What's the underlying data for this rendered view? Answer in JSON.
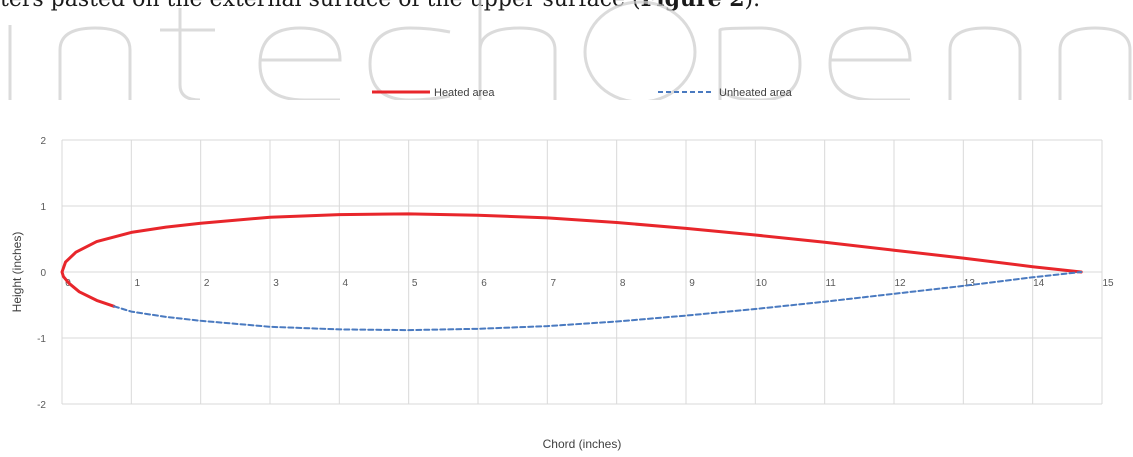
{
  "caption": {
    "text_before": "ters pasted on the external surface of the upper surface (",
    "figure_ref": "Figure 2",
    "text_after": ")."
  },
  "watermark": {
    "text": "IntechOpen"
  },
  "colors": {
    "heated": "#e8262b",
    "unheated": "#4a7ac0",
    "grid": "#d9d9d9",
    "axis_text": "#595959"
  },
  "chart_data": {
    "type": "line",
    "title": "",
    "xlabel": "Chord (inches)",
    "ylabel": "Height (inches)",
    "xlim": [
      0,
      15
    ],
    "ylim": [
      -2,
      2
    ],
    "x_ticks": [
      0,
      1,
      2,
      3,
      4,
      5,
      6,
      7,
      8,
      9,
      10,
      11,
      12,
      13,
      14,
      15
    ],
    "y_ticks": [
      -2,
      -1,
      0,
      1,
      2
    ],
    "grid": true,
    "legend_position": "top",
    "series": [
      {
        "name": "Heated area",
        "style": "solid",
        "x": [
          0.75,
          0.5,
          0.25,
          0.1,
          0.02,
          0,
          0.05,
          0.2,
          0.5,
          1,
          1.5,
          2,
          3,
          4,
          5,
          6,
          7,
          8,
          9,
          10,
          11,
          12,
          13,
          14,
          14.7
        ],
        "y": [
          -0.52,
          -0.43,
          -0.3,
          -0.17,
          -0.07,
          0,
          0.15,
          0.3,
          0.46,
          0.6,
          0.68,
          0.74,
          0.83,
          0.87,
          0.88,
          0.86,
          0.82,
          0.75,
          0.66,
          0.56,
          0.45,
          0.33,
          0.21,
          0.08,
          0.0
        ]
      },
      {
        "name": "Unheated area",
        "style": "dashed",
        "x": [
          0.75,
          1,
          1.5,
          2,
          3,
          4,
          5,
          6,
          7,
          8,
          9,
          10,
          11,
          12,
          13,
          14,
          14.7
        ],
        "y": [
          -0.52,
          -0.6,
          -0.68,
          -0.74,
          -0.83,
          -0.87,
          -0.88,
          -0.86,
          -0.82,
          -0.75,
          -0.66,
          -0.56,
          -0.45,
          -0.33,
          -0.21,
          -0.08,
          0.0
        ]
      }
    ]
  }
}
